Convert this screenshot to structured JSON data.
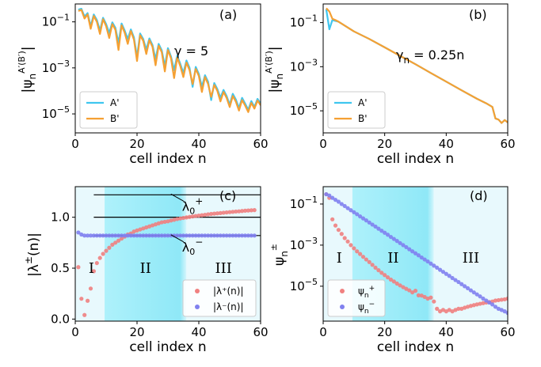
{
  "chart_data": [
    {
      "type": "line",
      "panel_label": "(a)",
      "annotation": "γ = 5",
      "xlabel": "cell index n",
      "ylabel": "|ψ_n^{A′(B′)}|",
      "yscale": "log",
      "xlim": [
        0,
        60
      ],
      "ylim": [
        1.5e-06,
        0.6
      ],
      "xticks": [
        0,
        20,
        40,
        60
      ],
      "yticks": [
        {
          "v": 0.1,
          "b": "10",
          "e": "−1"
        },
        {
          "v": 0.001,
          "b": "10",
          "e": "−3"
        },
        {
          "v": 1e-05,
          "b": "10",
          "e": "−5"
        }
      ],
      "legend": {
        "position": "lower-left",
        "entries": [
          "A'",
          "B'"
        ]
      },
      "series": [
        {
          "name": "A'",
          "color": "#3fc6ef",
          "x": [
            1,
            2,
            3,
            4,
            5,
            6,
            7,
            8,
            9,
            10,
            11,
            12,
            13,
            14,
            15,
            16,
            17,
            18,
            19,
            20,
            21,
            22,
            23,
            24,
            25,
            26,
            27,
            28,
            29,
            30,
            31,
            32,
            33,
            34,
            35,
            36,
            37,
            38,
            39,
            40,
            41,
            42,
            43,
            44,
            45,
            46,
            47,
            48,
            49,
            50,
            51,
            52,
            53,
            54,
            55,
            56,
            57,
            58,
            59,
            60
          ],
          "y": [
            0.34,
            0.37,
            0.17,
            0.24,
            0.065,
            0.21,
            0.12,
            0.042,
            0.15,
            0.08,
            0.033,
            0.095,
            0.055,
            0.012,
            0.085,
            0.042,
            0.018,
            0.047,
            0.021,
            0.003,
            0.031,
            0.018,
            0.0062,
            0.019,
            0.0099,
            0.0024,
            0.011,
            0.0058,
            0.0012,
            0.0072,
            0.0031,
            0.0008,
            0.0034,
            0.0015,
            0.0006,
            0.0021,
            0.001,
            0.00015,
            0.0011,
            0.00055,
            0.00015,
            0.00048,
            0.00025,
            4e-05,
            0.00022,
            0.00012,
            5e-05,
            0.00011,
            6e-05,
            2.5e-05,
            7.5e-05,
            4.2e-05,
            1.8e-05,
            5e-05,
            2.8e-05,
            1.5e-05,
            3.6e-05,
            2e-05,
            4.5e-05,
            2.8e-05
          ]
        },
        {
          "name": "B'",
          "color": "#f5a033",
          "x": [
            1,
            2,
            3,
            4,
            5,
            6,
            7,
            8,
            9,
            10,
            11,
            12,
            13,
            14,
            15,
            16,
            17,
            18,
            19,
            20,
            21,
            22,
            23,
            24,
            25,
            26,
            27,
            28,
            29,
            30,
            31,
            32,
            33,
            34,
            35,
            36,
            37,
            38,
            39,
            40,
            41,
            42,
            43,
            44,
            45,
            46,
            47,
            48,
            49,
            50,
            51,
            52,
            53,
            54,
            55,
            56,
            57,
            58,
            59,
            60
          ],
          "y": [
            0.3,
            0.33,
            0.14,
            0.21,
            0.05,
            0.18,
            0.1,
            0.03,
            0.13,
            0.065,
            0.02,
            0.08,
            0.045,
            0.006,
            0.07,
            0.034,
            0.011,
            0.04,
            0.017,
            0.002,
            0.026,
            0.015,
            0.004,
            0.016,
            0.0082,
            0.0013,
            0.0092,
            0.0048,
            0.0007,
            0.006,
            0.0026,
            0.00036,
            0.0028,
            0.0012,
            0.0004,
            0.0017,
            0.0008,
            0.0002,
            0.0009,
            0.00045,
            9e-05,
            0.0004,
            0.0002,
            5.5e-05,
            0.00018,
            0.0001,
            3.5e-05,
            9e-05,
            5e-05,
            2e-05,
            6e-05,
            3.4e-05,
            1.4e-05,
            4e-05,
            2.3e-05,
            1.2e-05,
            3e-05,
            1.7e-05,
            3.8e-05,
            2.4e-05
          ]
        }
      ]
    },
    {
      "type": "line",
      "panel_label": "(b)",
      "annotation": "γ_n = 0.25n",
      "xlabel": "cell index n",
      "ylabel": "|ψ_n^{A′(B′)}|",
      "yscale": "log",
      "xlim": [
        0,
        60
      ],
      "ylim": [
        1e-06,
        0.7
      ],
      "xticks": [
        0,
        20,
        40,
        60
      ],
      "yticks": [
        {
          "v": 0.1,
          "b": "10",
          "e": "−1"
        },
        {
          "v": 0.001,
          "b": "10",
          "e": "−3"
        },
        {
          "v": 1e-05,
          "b": "10",
          "e": "−5"
        }
      ],
      "legend": {
        "position": "lower-left",
        "entries": [
          "A'",
          "B'"
        ]
      },
      "series": [
        {
          "name": "A'",
          "color": "#3fc6ef",
          "x": [
            1,
            2,
            3,
            4,
            5,
            10,
            15,
            20,
            25,
            30,
            35,
            40,
            45,
            50,
            53,
            55,
            56,
            57,
            58,
            59,
            60
          ],
          "y": [
            0.4,
            0.05,
            0.13,
            0.12,
            0.11,
            0.04,
            0.018,
            0.0075,
            0.0031,
            0.0013,
            0.00052,
            0.00021,
            8.5e-05,
            3.5e-05,
            2.2e-05,
            1.5e-05,
            4.5e-06,
            4e-06,
            2.8e-06,
            3.8e-06,
            3e-06
          ]
        },
        {
          "name": "B'",
          "color": "#f5a033",
          "x": [
            1,
            2,
            3,
            4,
            5,
            10,
            15,
            20,
            25,
            30,
            35,
            40,
            45,
            50,
            53,
            55,
            56,
            57,
            58,
            59,
            60
          ],
          "y": [
            0.45,
            0.32,
            0.15,
            0.13,
            0.11,
            0.04,
            0.018,
            0.0075,
            0.0031,
            0.0013,
            0.00052,
            0.00021,
            8.5e-05,
            3.5e-05,
            2.2e-05,
            1.5e-05,
            4.5e-06,
            4e-06,
            2.8e-06,
            3.8e-06,
            3e-06
          ]
        }
      ]
    },
    {
      "type": "scatter",
      "panel_label": "(c)",
      "xlabel": "cell index n",
      "ylabel": "|λ^±(n)|",
      "yscale": "linear",
      "xlim": [
        0,
        60
      ],
      "ylim": [
        -0.02,
        1.3
      ],
      "xticks": [
        0,
        20,
        40,
        60
      ],
      "yticks": [
        {
          "v": 0.0,
          "t": "0.0"
        },
        {
          "v": 0.5,
          "t": "0.5"
        },
        {
          "v": 1.0,
          "t": "1.0"
        }
      ],
      "hlines": [
        {
          "y": 1.22,
          "label": "λ0+",
          "label_x": 32
        },
        {
          "y": 1.0
        },
        {
          "y": 0.82,
          "label": "λ0−",
          "label_x": 32
        }
      ],
      "regions": [
        {
          "label": "I",
          "from": 0,
          "to": 9.5
        },
        {
          "label": "II",
          "from": 9.5,
          "to": 36
        },
        {
          "label": "III",
          "from": 36,
          "to": 60
        }
      ],
      "legend": {
        "position": "lower-right",
        "entries": [
          "|λ⁺(n)|",
          "|λ⁻(n)|"
        ]
      },
      "series": [
        {
          "name": "|λ⁺(n)|",
          "color": "#f08080",
          "x": [
            1,
            2,
            3,
            4,
            5,
            6,
            7,
            8,
            9,
            10,
            11,
            12,
            13,
            14,
            15,
            16,
            17,
            18,
            19,
            20,
            21,
            22,
            23,
            24,
            25,
            26,
            27,
            28,
            29,
            30,
            31,
            32,
            33,
            34,
            35,
            36,
            37,
            38,
            39,
            40,
            41,
            42,
            43,
            44,
            45,
            46,
            47,
            48,
            49,
            50,
            51,
            52,
            53,
            54,
            55,
            56,
            57,
            58
          ],
          "y": [
            0.51,
            0.2,
            0.04,
            0.18,
            0.3,
            0.47,
            0.55,
            0.6,
            0.64,
            0.67,
            0.7,
            0.73,
            0.75,
            0.77,
            0.79,
            0.81,
            0.83,
            0.84,
            0.86,
            0.87,
            0.88,
            0.89,
            0.9,
            0.91,
            0.92,
            0.93,
            0.94,
            0.95,
            0.955,
            0.96,
            0.968,
            0.975,
            0.982,
            0.988,
            0.993,
            0.998,
            1.003,
            1.008,
            1.012,
            1.016,
            1.02,
            1.024,
            1.028,
            1.032,
            1.035,
            1.038,
            1.041,
            1.044,
            1.047,
            1.05,
            1.053,
            1.056,
            1.058,
            1.061,
            1.064,
            1.066,
            1.068,
            1.07
          ]
        },
        {
          "name": "|λ⁻(n)|",
          "color": "#8080ef",
          "x": [
            1,
            2,
            3,
            4,
            5,
            6,
            7,
            8,
            9,
            10,
            11,
            12,
            13,
            14,
            15,
            16,
            17,
            18,
            19,
            20,
            21,
            22,
            23,
            24,
            25,
            26,
            27,
            28,
            29,
            30,
            31,
            32,
            33,
            34,
            35,
            36,
            37,
            38,
            39,
            40,
            41,
            42,
            43,
            44,
            45,
            46,
            47,
            48,
            49,
            50,
            51,
            52,
            53,
            54,
            55,
            56,
            57,
            58
          ],
          "y": [
            0.85,
            0.83,
            0.82,
            0.82,
            0.82,
            0.82,
            0.82,
            0.82,
            0.82,
            0.82,
            0.82,
            0.82,
            0.82,
            0.82,
            0.82,
            0.82,
            0.82,
            0.82,
            0.82,
            0.82,
            0.82,
            0.82,
            0.82,
            0.82,
            0.82,
            0.82,
            0.82,
            0.82,
            0.82,
            0.82,
            0.82,
            0.82,
            0.82,
            0.82,
            0.82,
            0.82,
            0.82,
            0.82,
            0.82,
            0.82,
            0.82,
            0.82,
            0.82,
            0.82,
            0.82,
            0.82,
            0.82,
            0.82,
            0.82,
            0.82,
            0.82,
            0.82,
            0.82,
            0.82,
            0.82,
            0.82,
            0.82,
            0.82
          ]
        }
      ]
    },
    {
      "type": "scatter",
      "panel_label": "(d)",
      "xlabel": "cell index n",
      "ylabel": "ψ_n^±",
      "yscale": "log",
      "xlim": [
        0,
        60
      ],
      "ylim": [
        2e-07,
        0.7
      ],
      "xticks": [
        0,
        20,
        40,
        60
      ],
      "yticks": [
        {
          "v": 0.1,
          "b": "10",
          "e": "−1"
        },
        {
          "v": 0.001,
          "b": "10",
          "e": "−3"
        },
        {
          "v": 1e-05,
          "b": "10",
          "e": "−5"
        }
      ],
      "regions": [
        {
          "label": "I",
          "from": 0,
          "to": 9.5
        },
        {
          "label": "II",
          "from": 9.5,
          "to": 36
        },
        {
          "label": "III",
          "from": 36,
          "to": 60
        }
      ],
      "legend": {
        "position": "lower-left",
        "entries": [
          "ψn+",
          "ψn−"
        ]
      },
      "series": [
        {
          "name": "ψn+",
          "color": "#f08080",
          "x": [
            1,
            2,
            3,
            4,
            5,
            6,
            7,
            8,
            9,
            10,
            11,
            12,
            13,
            14,
            15,
            16,
            17,
            18,
            19,
            20,
            21,
            22,
            23,
            24,
            25,
            26,
            27,
            28,
            29,
            30,
            31,
            32,
            33,
            34,
            35,
            36,
            37,
            38,
            39,
            40,
            41,
            42,
            43,
            44,
            45,
            46,
            47,
            48,
            49,
            50,
            51,
            52,
            53,
            54,
            55,
            56,
            57,
            58,
            59,
            60
          ],
          "y": [
            0.3,
            0.2,
            0.018,
            0.009,
            0.0055,
            0.0035,
            0.0022,
            0.0015,
            0.001,
            0.0007,
            0.0005,
            0.00037,
            0.00027,
            0.0002,
            0.00015,
            0.00011,
            8e-05,
            6e-05,
            4.5e-05,
            3.5e-05,
            2.7e-05,
            2.1e-05,
            1.7e-05,
            1.35e-05,
            1.1e-05,
            9e-06,
            7.5e-06,
            6.3e-06,
            5e-06,
            6e-06,
            3.6e-06,
            3.5e-06,
            3e-06,
            2.5e-06,
            2.8e-06,
            1.8e-06,
            8e-07,
            6e-07,
            7e-07,
            6e-07,
            7e-07,
            6e-07,
            7e-07,
            8e-07,
            8e-07,
            9e-07,
            1e-06,
            1.1e-06,
            1.2e-06,
            1.3e-06,
            1.4e-06,
            1.5e-06,
            1.6e-06,
            1.7e-06,
            1.8e-06,
            2e-06,
            2.1e-06,
            2.2e-06,
            2.3e-06,
            2.5e-06
          ]
        },
        {
          "name": "ψn−",
          "color": "#8080ef",
          "x": [
            1,
            2,
            3,
            4,
            5,
            6,
            7,
            8,
            9,
            10,
            11,
            12,
            13,
            14,
            15,
            16,
            17,
            18,
            19,
            20,
            21,
            22,
            23,
            24,
            25,
            26,
            27,
            28,
            29,
            30,
            31,
            32,
            33,
            34,
            35,
            36,
            37,
            38,
            39,
            40,
            41,
            42,
            43,
            44,
            45,
            46,
            47,
            48,
            49,
            50,
            51,
            52,
            53,
            54,
            55,
            56,
            57,
            58,
            59,
            60
          ],
          "y": [
            0.3,
            0.26,
            0.2,
            0.16,
            0.13,
            0.1,
            0.08,
            0.063,
            0.05,
            0.04,
            0.032,
            0.025,
            0.02,
            0.016,
            0.0126,
            0.01,
            0.008,
            0.0063,
            0.005,
            0.004,
            0.0032,
            0.0025,
            0.002,
            0.0016,
            0.00126,
            0.001,
            0.0008,
            0.00063,
            0.0005,
            0.0004,
            0.00032,
            0.00025,
            0.0002,
            0.00016,
            0.000126,
            0.0001,
            8e-05,
            6.3e-05,
            5e-05,
            4e-05,
            3.2e-05,
            2.5e-05,
            2e-05,
            1.6e-05,
            1.26e-05,
            1e-05,
            8e-06,
            6.3e-06,
            5e-06,
            4e-06,
            3.2e-06,
            2.5e-06,
            2e-06,
            1.6e-06,
            1.3e-06,
            1e-06,
            8e-07,
            7e-07,
            6e-07,
            5e-07
          ]
        }
      ]
    }
  ]
}
